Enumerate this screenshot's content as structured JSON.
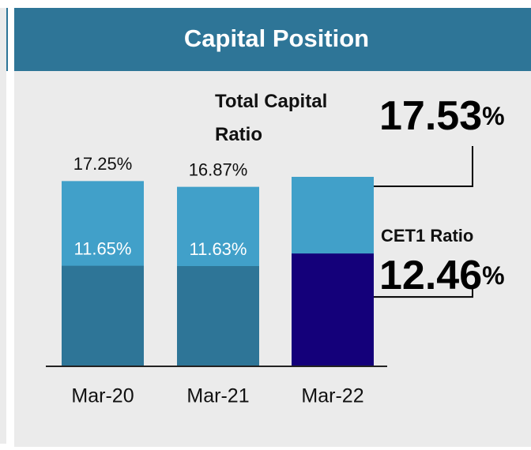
{
  "chart_data": {
    "type": "bar",
    "title": "Capital Position",
    "categories": [
      "Mar-20",
      "Mar-21",
      "Mar-22"
    ],
    "series": [
      {
        "name": "Total Capital Ratio",
        "color": "#41a0c9",
        "values": [
          17.25,
          16.87,
          17.53
        ],
        "value_labels": [
          "17.25%",
          "16.87%",
          "17.53%"
        ]
      },
      {
        "name": "CET1 Ratio",
        "color": "#2e7597",
        "values": [
          11.65,
          11.63,
          12.46
        ],
        "value_labels": [
          "11.65%",
          "11.63%",
          "12.46%"
        ]
      }
    ],
    "highlight_color": "#14007a",
    "ylim": [
      5,
      18
    ]
  }
}
